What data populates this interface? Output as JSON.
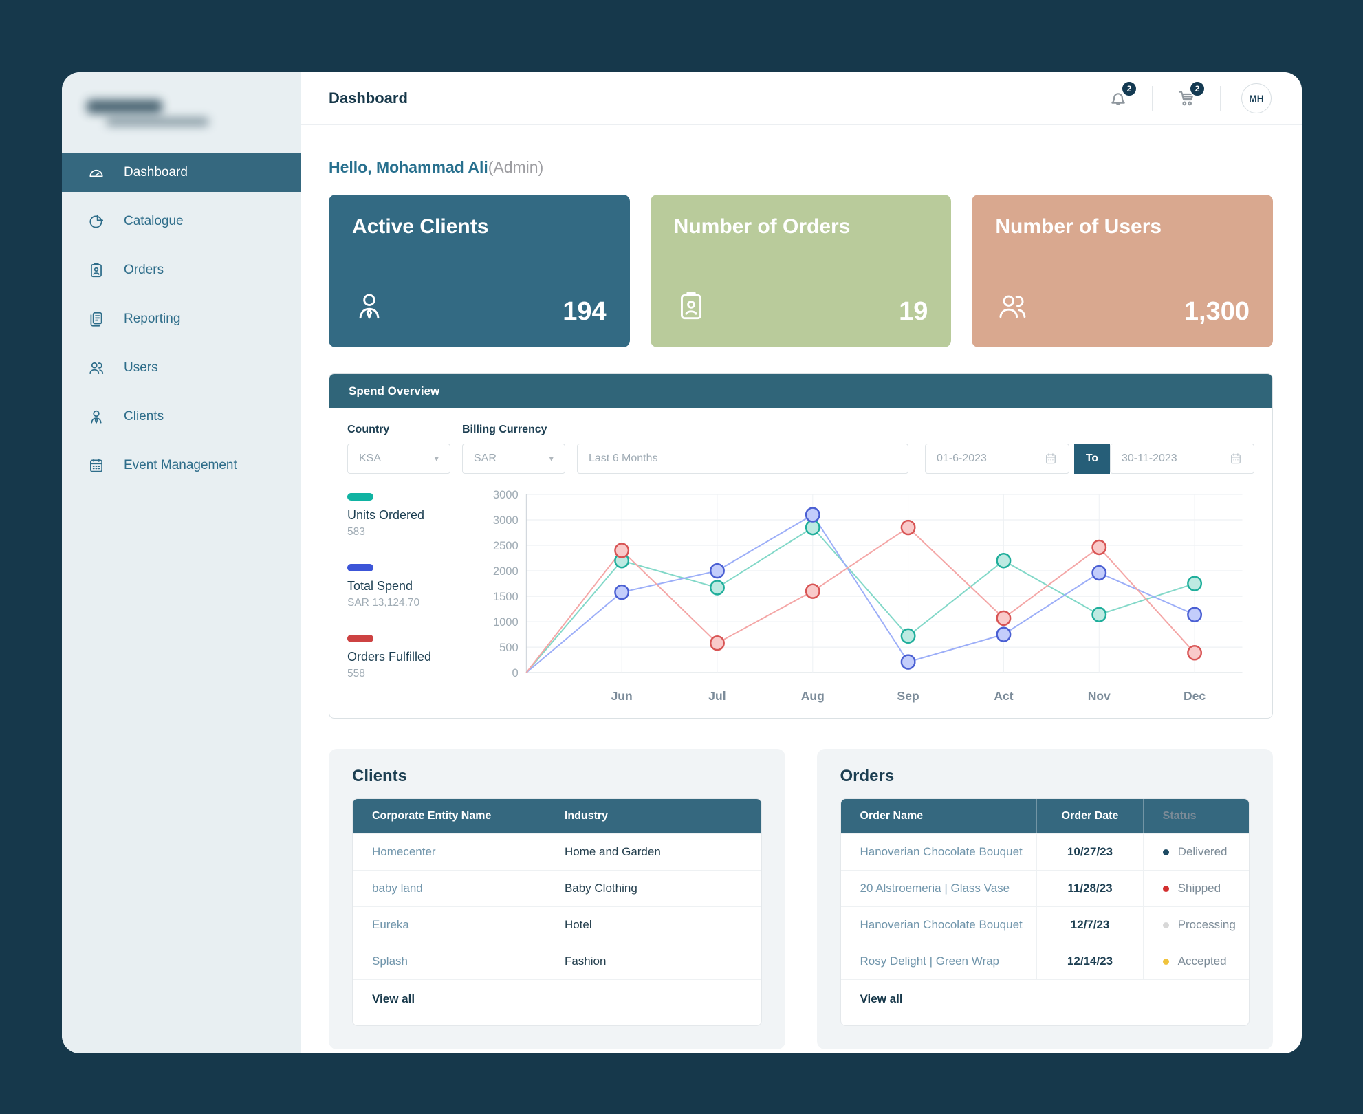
{
  "sidebar": {
    "items": [
      {
        "label": "Dashboard",
        "icon": "speedometer",
        "active": true
      },
      {
        "label": "Catalogue",
        "icon": "pie-chart",
        "active": false
      },
      {
        "label": "Orders",
        "icon": "clipboard-person",
        "active": false
      },
      {
        "label": "Reporting",
        "icon": "documents",
        "active": false
      },
      {
        "label": "Users",
        "icon": "users",
        "active": false
      },
      {
        "label": "Clients",
        "icon": "person-tie",
        "active": false
      },
      {
        "label": "Event Management",
        "icon": "calendar",
        "active": false
      }
    ]
  },
  "header": {
    "title": "Dashboard",
    "notification_count": "2",
    "cart_count": "2",
    "avatar_initials": "MH"
  },
  "greeting": {
    "hello": "Hello, Mohammad Ali",
    "role": "(Admin)"
  },
  "stat_cards": [
    {
      "title": "Active Clients",
      "value": "194",
      "bg": "#336a83",
      "icon": "person-tie"
    },
    {
      "title": "Number of Orders",
      "value": "19",
      "bg": "#b9cb9b",
      "icon": "clipboard-person"
    },
    {
      "title": "Number of Users",
      "value": "1,300",
      "bg": "#d9a88f",
      "icon": "users"
    }
  ],
  "spend_overview": {
    "title": "Spend Overview",
    "filters": {
      "country_label": "Country",
      "country_value": "KSA",
      "currency_label": "Billing Currency",
      "currency_value": "SAR",
      "period_value": "Last 6 Months",
      "date_from": "01-6-2023",
      "to_label": "To",
      "date_to": "30-11-2023"
    },
    "legend": [
      {
        "label": "Units Ordered",
        "value": "583",
        "color": "#10b3a2"
      },
      {
        "label": "Total Spend",
        "value": "SAR 13,124.70",
        "color": "#3c55d8"
      },
      {
        "label": "Orders Fulfilled",
        "value": "558",
        "color": "#cd4242"
      }
    ]
  },
  "chart_data": {
    "type": "line",
    "title": "Spend Overview",
    "x": [
      "Jun",
      "Jul",
      "Aug",
      "Sep",
      "Act",
      "Nov",
      "Dec"
    ],
    "y_ticks": [
      "3000",
      "3000",
      "2500",
      "2000",
      "1500",
      "1000",
      "500",
      "0"
    ],
    "y_max": 3500,
    "starts_at_zero": true,
    "grid": true,
    "legend_position": "left",
    "series": [
      {
        "name": "Units Ordered",
        "values": [
          2200,
          1670,
          2850,
          720,
          2200,
          1140,
          1750
        ],
        "line_color": "#82d8c8",
        "marker_stroke": "#1fae9b",
        "marker_fill": "#bdeae2"
      },
      {
        "name": "Total Spend",
        "values": [
          1580,
          2000,
          3100,
          210,
          750,
          1960,
          1140
        ],
        "line_color": "#9caef8",
        "marker_stroke": "#4a5fd3",
        "marker_fill": "#c3cdfb"
      },
      {
        "name": "Orders Fulfilled",
        "values": [
          2400,
          580,
          1600,
          2850,
          1070,
          2460,
          390
        ],
        "line_color": "#f4a6a6",
        "marker_stroke": "#d85454",
        "marker_fill": "#f9caca"
      }
    ]
  },
  "clients_table": {
    "title": "Clients",
    "headers": [
      "Corporate Entity Name",
      "Industry"
    ],
    "rows": [
      [
        "Homecenter",
        "Home and Garden"
      ],
      [
        "baby land",
        "Baby Clothing"
      ],
      [
        "Eureka",
        "Hotel"
      ],
      [
        "Splash",
        "Fashion"
      ]
    ],
    "view_all": "View all"
  },
  "orders_table": {
    "title": "Orders",
    "headers": [
      "Order Name",
      "Order Date",
      "Status"
    ],
    "rows": [
      {
        "name": "Hanoverian Chocolate Bouquet",
        "date": "10/27/23",
        "status": "Delivered",
        "dot": "#1d4a63"
      },
      {
        "name": "20 Alstroemeria | Glass Vase",
        "date": "11/28/23",
        "status": "Shipped",
        "dot": "#d32f2f"
      },
      {
        "name": "Hanoverian Chocolate Bouquet",
        "date": "12/7/23",
        "status": "Processing",
        "dot": "#d8d8d8"
      },
      {
        "name": "Rosy Delight | Green Wrap",
        "date": "12/14/23",
        "status": "Accepted",
        "dot": "#f0c33c"
      }
    ],
    "view_all": "View all"
  }
}
